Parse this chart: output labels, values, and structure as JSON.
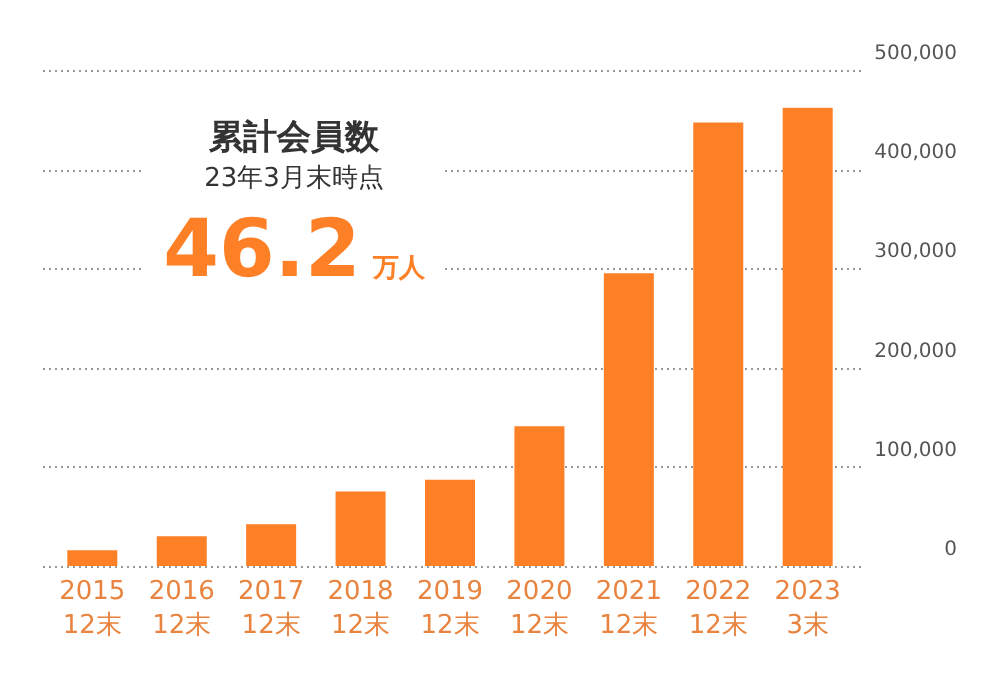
{
  "chart_data": {
    "type": "bar",
    "title": "累計会員数",
    "subtitle": "23年3月末時点",
    "annotations": [
      "46.2",
      "万人"
    ],
    "categories": [
      "2015\n12末",
      "2016\n12末",
      "2017\n12末",
      "2018\n12末",
      "2019\n12末",
      "2020\n12末",
      "2021\n12末",
      "2022\n12末",
      "2023\n3末"
    ],
    "values": [
      16000,
      30000,
      42000,
      75000,
      87000,
      141000,
      295000,
      447000,
      462000
    ],
    "color": "#fd7f26",
    "ylim": [
      0,
      500000
    ],
    "yticks": [
      0,
      {
        "value": 100000,
        "label": "100,000"
      },
      {
        "value": 200000,
        "label": "200,000"
      },
      {
        "value": 300000,
        "label": "300,000"
      },
      {
        "value": 400000,
        "label": "400,000"
      },
      {
        "value": 500000,
        "label": "500,000"
      }
    ],
    "grid": "y"
  }
}
